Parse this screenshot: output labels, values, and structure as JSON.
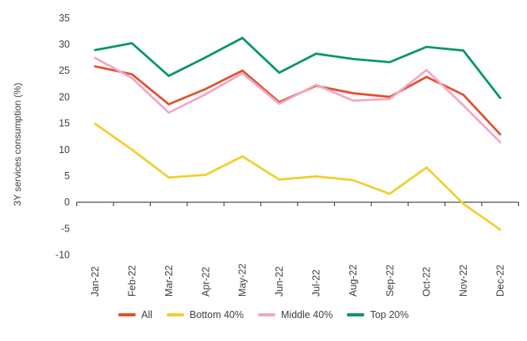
{
  "chart_data": {
    "type": "line",
    "title": "",
    "ylabel": "3Y services consumption (%)",
    "xlabel": "",
    "categories": [
      "Jan-22",
      "Feb-22",
      "Mar-22",
      "Apr-22",
      "May-22",
      "Jun-22",
      "Jul-22",
      "Aug-22",
      "Sep-22",
      "Oct-22",
      "Nov-22",
      "Dec-22"
    ],
    "ylim": [
      -10,
      35
    ],
    "yticks": [
      35,
      30,
      25,
      20,
      15,
      10,
      5,
      0,
      -5,
      -10
    ],
    "grid": false,
    "legend_position": "bottom",
    "axis_color": "#4a4a4a",
    "text_color": "#3f3f3f",
    "series": [
      {
        "name": "All",
        "color": "#E2502B",
        "values": [
          25.8,
          24.3,
          18.6,
          21.5,
          25.0,
          19.0,
          22.1,
          20.7,
          20.0,
          23.8,
          20.4,
          12.9
        ]
      },
      {
        "name": "Bottom 40%",
        "color": "#F1CF2D",
        "values": [
          14.9,
          10.0,
          4.7,
          5.2,
          8.7,
          4.3,
          4.9,
          4.2,
          1.6,
          6.6,
          -0.3,
          -5.2
        ]
      },
      {
        "name": "Middle 40%",
        "color": "#F3A7C6",
        "values": [
          27.4,
          23.6,
          17.0,
          20.5,
          24.5,
          18.7,
          22.3,
          19.3,
          19.6,
          25.1,
          18.4,
          11.4
        ]
      },
      {
        "name": "Top 20%",
        "color": "#00956D",
        "values": [
          28.9,
          30.2,
          24.0,
          27.5,
          31.2,
          24.6,
          28.2,
          27.2,
          26.6,
          29.5,
          28.8,
          19.8
        ]
      }
    ]
  }
}
